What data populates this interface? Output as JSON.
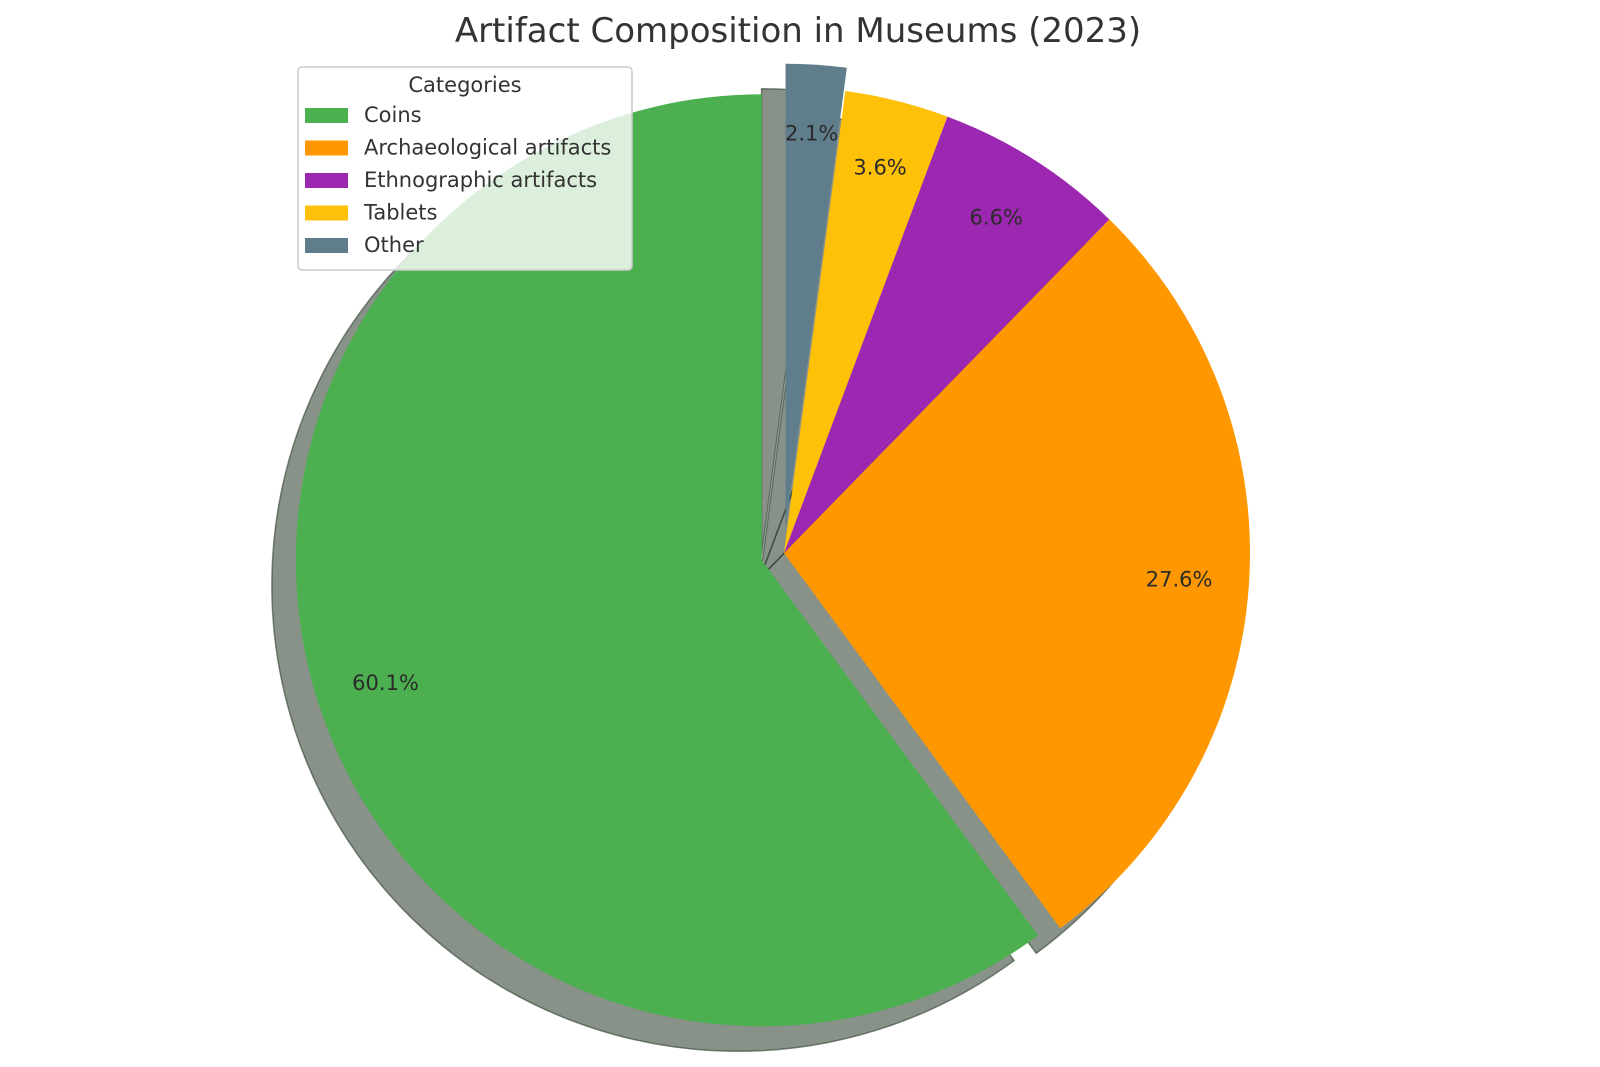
{
  "chart_data": {
    "type": "pie",
    "title": "Artifact Composition in Museums (2023)",
    "legend": {
      "title": "Categories",
      "placement": "top-left"
    },
    "start_angle_deg": 90,
    "direction": "counterclockwise",
    "shadow": true,
    "slices": [
      {
        "label": "Coins",
        "value": 60.1,
        "pct_label": "60.1%",
        "color": "#4caf50",
        "exploded": true
      },
      {
        "label": "Archaeological artifacts",
        "value": 27.6,
        "pct_label": "27.6%",
        "color": "#ff9800",
        "exploded": false
      },
      {
        "label": "Ethnographic artifacts",
        "value": 6.6,
        "pct_label": "6.6%",
        "color": "#9c27b0",
        "exploded": false
      },
      {
        "label": "Tablets",
        "value": 3.6,
        "pct_label": "3.6%",
        "color": "#ffc107",
        "exploded": false
      },
      {
        "label": "Other",
        "value": 2.1,
        "pct_label": "2.1%",
        "color": "#607d8b",
        "exploded": true
      }
    ]
  }
}
